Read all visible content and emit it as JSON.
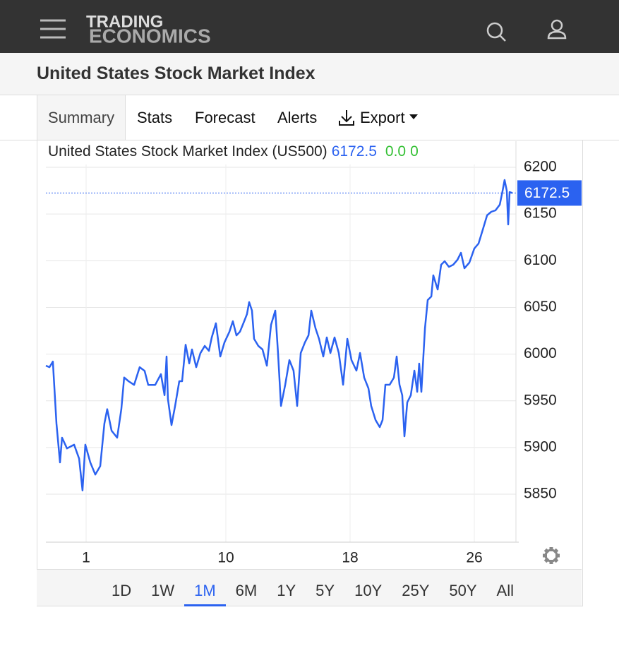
{
  "header": {
    "logo_line1": "TRADING",
    "logo_line2": "ECONOMICS"
  },
  "title": "United States Stock Market Index",
  "tabs": [
    "Summary",
    "Stats",
    "Forecast",
    "Alerts",
    "Export"
  ],
  "selected_tab": 0,
  "chart_data": {
    "type": "line",
    "last_value": 6172.5,
    "change": "0.0",
    "change_percent": "0",
    "x": [
      -1.59,
      -1.36,
      -1.14,
      -0.91,
      -0.68,
      -0.55,
      -0.23,
      0.23,
      0.55,
      0.77,
      0.95,
      1.27,
      1.59,
      1.91,
      2.18,
      2.36,
      2.64,
      3.0,
      3.27,
      3.45,
      3.73,
      4.09,
      4.45,
      4.77,
      5.0,
      5.45,
      5.82,
      6.05,
      6.18,
      6.27,
      6.5,
      6.73,
      7.0,
      7.18,
      7.41,
      7.64,
      7.82,
      8.09,
      8.36,
      8.64,
      8.91,
      9.09,
      9.36,
      9.64,
      9.91,
      10.23,
      10.45,
      10.68,
      10.91,
      11.18,
      11.36,
      11.5,
      11.68,
      11.82,
      12.09,
      12.36,
      12.64,
      12.91,
      13.18,
      13.36,
      13.55,
      13.82,
      14.09,
      14.36,
      14.59,
      14.82,
      15.09,
      15.32,
      15.5,
      15.77,
      16.0,
      16.27,
      16.5,
      16.73,
      17.0,
      17.27,
      17.55,
      17.82,
      18.09,
      18.41,
      18.64,
      18.91,
      19.18,
      19.36,
      19.64,
      19.91,
      20.09,
      20.27,
      20.55,
      20.82,
      21.0,
      21.18,
      21.36,
      21.5,
      21.68,
      21.91,
      22.14,
      22.32,
      22.45,
      22.59,
      22.82,
      23.0,
      23.23,
      23.36,
      23.64,
      23.86,
      24.09,
      24.36,
      24.64,
      24.91,
      25.14,
      25.36,
      25.68,
      26.0,
      26.27,
      26.55,
      26.82,
      27.09,
      27.36,
      27.64,
      27.82,
      27.95,
      28.09,
      28.18,
      28.27,
      28.45
    ],
    "series": [
      {
        "name": "United States Stock Market Index (US500)",
        "color": "#2b62f0",
        "values": [
          5987.6,
          5986,
          5992,
          5925.6,
          5884,
          5910.5,
          5899,
          5903,
          5888,
          5854,
          5903,
          5884,
          5871,
          5880,
          5925.6,
          5941,
          5918,
          5910.5,
          5941,
          5975,
          5971,
          5967,
          5986,
          5982,
          5967,
          5967,
          5978.5,
          5956,
          5997.4,
          5952,
          5924,
          5944.5,
          5971,
          5971,
          6010,
          5990,
          6005,
          5986,
          6001,
          6008.8,
          6003.5,
          6017.8,
          6033,
          5997.4,
          6012.5,
          6024,
          6035.2,
          6020,
          6024,
          6035.2,
          6042.8,
          6055.6,
          6046.6,
          6016.3,
          6008.8,
          6005,
          5987.6,
          6031.4,
          6046.6,
          6001.2,
          5944.5,
          5967.2,
          5993.6,
          5982.3,
          5944.5,
          6001.2,
          6012.5,
          6020.1,
          6046.6,
          6027.7,
          6016.3,
          5997.4,
          6017.8,
          6001.2,
          6017.8,
          6001.2,
          5967.2,
          6016.3,
          5993.6,
          5982.3,
          6001.2,
          5974.8,
          5963.4,
          5944.5,
          5929.4,
          5921.8,
          5929.4,
          5967.2,
          5967.2,
          5974.8,
          5997.4,
          5967.2,
          5955.9,
          5912,
          5948.3,
          5955.9,
          5982.3,
          5959.6,
          5989.9,
          5959.6,
          6027.7,
          6057.9,
          6061.7,
          6084.4,
          6069.2,
          6095.7,
          6099.5,
          6093.4,
          6095.7,
          6101,
          6108.5,
          6091.9,
          6098,
          6113,
          6118.4,
          6133.5,
          6148.6,
          6152.4,
          6153.9,
          6160,
          6175,
          6186.4,
          6175,
          6138.8,
          6173.5,
          6172.5
        ]
      }
    ],
    "xlim": [
      -1.59,
      28.68
    ],
    "xticks": [
      1,
      10,
      18,
      26
    ],
    "ylim": [
      5798.6,
      6228.0
    ],
    "yticks": [
      5850,
      5900,
      5950,
      6000,
      6050,
      6100,
      6150,
      6200
    ],
    "grid": true
  },
  "ranges": [
    "1D",
    "1W",
    "1M",
    "6M",
    "1Y",
    "5Y",
    "10Y",
    "25Y",
    "50Y",
    "All"
  ],
  "selected_range": 2
}
